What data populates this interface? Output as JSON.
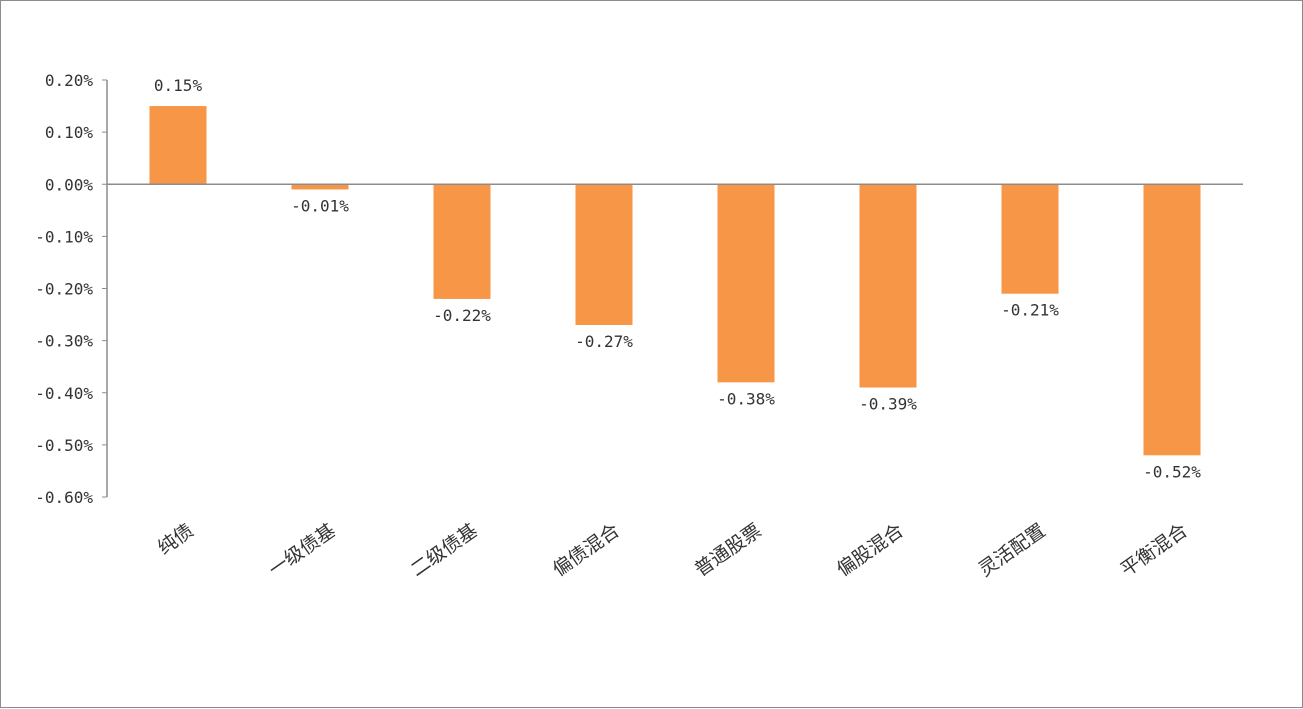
{
  "chart_data": {
    "type": "bar",
    "categories": [
      "纯债",
      "一级债基",
      "二级债基",
      "偏债混合",
      "普通股票",
      "偏股混合",
      "灵活配置",
      "平衡混合"
    ],
    "values": [
      0.15,
      -0.01,
      -0.22,
      -0.27,
      -0.38,
      -0.39,
      -0.21,
      -0.52
    ],
    "data_labels": [
      "0.15%",
      "-0.01%",
      "-0.22%",
      "-0.27%",
      "-0.38%",
      "-0.39%",
      "-0.21%",
      "-0.52%"
    ],
    "yticks": [
      0.2,
      0.1,
      0.0,
      -0.1,
      -0.2,
      -0.3,
      -0.4,
      -0.5,
      -0.6
    ],
    "ytick_labels": [
      "0.20%",
      "0.10%",
      "0.00%",
      "-0.10%",
      "-0.20%",
      "-0.30%",
      "-0.40%",
      "-0.50%",
      "-0.60%"
    ],
    "ylim": [
      -0.6,
      0.2
    ],
    "title": "",
    "xlabel": "",
    "ylabel": "",
    "grid": false,
    "legend": "none",
    "bar_color": "#F79646",
    "axis_color": "#8c8c8c"
  }
}
